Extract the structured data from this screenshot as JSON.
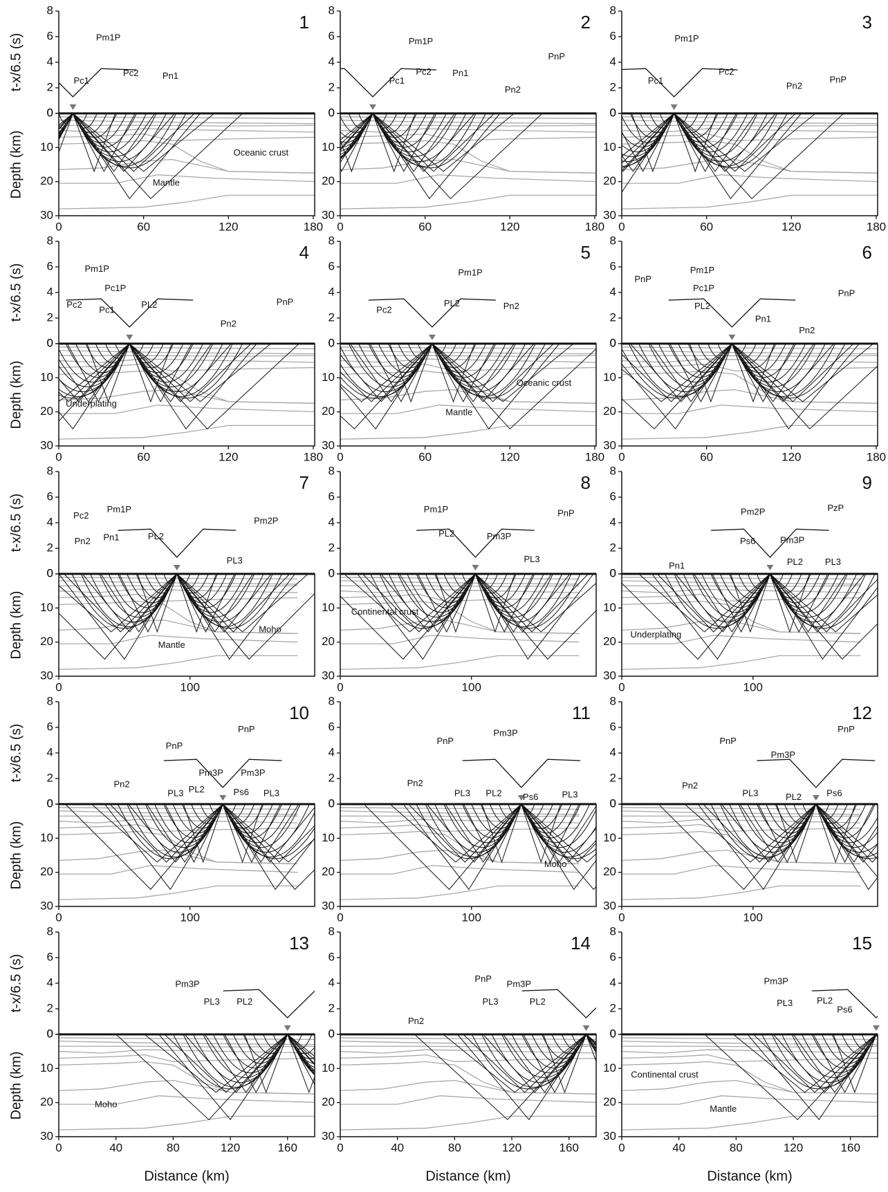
{
  "model": {
    "interfaces": [
      [
        [
          0,
          1
        ],
        [
          60,
          1.2
        ],
        [
          182,
          1.5
        ]
      ],
      [
        [
          0,
          2
        ],
        [
          60,
          2.5
        ],
        [
          120,
          2.8
        ],
        [
          182,
          3
        ]
      ],
      [
        [
          0,
          3.5
        ],
        [
          60,
          3.5
        ],
        [
          120,
          3.7
        ],
        [
          182,
          3.5
        ]
      ],
      [
        [
          0,
          5
        ],
        [
          30,
          5.5
        ],
        [
          60,
          4.5
        ],
        [
          120,
          5
        ],
        [
          182,
          5.5
        ]
      ],
      [
        [
          0,
          7
        ],
        [
          40,
          6.5
        ],
        [
          60,
          6
        ],
        [
          80,
          8
        ],
        [
          120,
          7.5
        ],
        [
          182,
          7
        ]
      ],
      [
        [
          0,
          9
        ],
        [
          40,
          8.5
        ],
        [
          60,
          8
        ],
        [
          80,
          9
        ],
        [
          100,
          14
        ],
        [
          120,
          17
        ],
        [
          182,
          17.5
        ]
      ],
      [
        [
          0,
          16.5
        ],
        [
          30,
          16
        ],
        [
          60,
          14
        ],
        [
          80,
          13.5
        ],
        [
          120,
          17
        ],
        [
          182,
          17.5
        ]
      ],
      [
        [
          0,
          20.5
        ],
        [
          40,
          20.5
        ],
        [
          70,
          18
        ],
        [
          110,
          19
        ],
        [
          182,
          20
        ]
      ],
      [
        [
          0,
          28
        ],
        [
          60,
          27.5
        ],
        [
          90,
          26
        ],
        [
          120,
          24
        ],
        [
          182,
          24
        ]
      ]
    ]
  },
  "chart_data": [
    {
      "type": "raytrace",
      "label": "1",
      "time_label": "t-x/6.5 (s)",
      "depth_label": "Depth (km)",
      "xlim": [
        0,
        181
      ],
      "xticks": [
        0,
        60,
        120,
        180
      ],
      "tlim": [
        0,
        8
      ],
      "tticks": [
        0,
        2,
        4,
        6,
        8
      ],
      "zlim": [
        0,
        30
      ],
      "zticks": [
        0,
        10,
        20,
        30
      ],
      "shot_x": 10,
      "phases": [
        {
          "text": "Pm1P",
          "x": 35,
          "t": 5.9
        },
        {
          "text": "Pc1",
          "x": 16,
          "t": 2.5
        },
        {
          "text": "Pc2",
          "x": 51,
          "t": 3.1
        },
        {
          "text": "Pn1",
          "x": 79,
          "t": 2.9
        }
      ],
      "units": [
        {
          "text": "Oceanic crust",
          "x": 143,
          "z": 11.7
        },
        {
          "text": "Mantle",
          "x": 76,
          "z": 20.5
        }
      ]
    },
    {
      "type": "raytrace",
      "label": "2",
      "xlim": [
        0,
        181
      ],
      "xticks": [
        0,
        60,
        120,
        180
      ],
      "tlim": [
        0,
        8
      ],
      "tticks": [
        0,
        2,
        4,
        6,
        8
      ],
      "zlim": [
        0,
        30
      ],
      "zticks": [
        0,
        10,
        20,
        30
      ],
      "shot_x": 23,
      "phases": [
        {
          "text": "Pm1P",
          "x": 57,
          "t": 5.6
        },
        {
          "text": "Pc1",
          "x": 40,
          "t": 2.5
        },
        {
          "text": "Pc2",
          "x": 59,
          "t": 3.2
        },
        {
          "text": "Pn1",
          "x": 85,
          "t": 3.1
        },
        {
          "text": "Pn2",
          "x": 122,
          "t": 1.8
        },
        {
          "text": "PnP",
          "x": 153,
          "t": 4.4
        }
      ],
      "units": []
    },
    {
      "type": "raytrace",
      "label": "3",
      "xlim": [
        0,
        181
      ],
      "xticks": [
        0,
        60,
        120,
        180
      ],
      "tlim": [
        0,
        8
      ],
      "tticks": [
        0,
        2,
        4,
        6,
        8
      ],
      "zlim": [
        0,
        30
      ],
      "zticks": [
        0,
        10,
        20,
        30
      ],
      "shot_x": 37,
      "phases": [
        {
          "text": "Pm1P",
          "x": 46,
          "t": 5.8
        },
        {
          "text": "Pc1",
          "x": 24,
          "t": 2.5
        },
        {
          "text": "Pc2",
          "x": 74,
          "t": 3.2
        },
        {
          "text": "Pn2",
          "x": 122,
          "t": 2.1
        },
        {
          "text": "PnP",
          "x": 153,
          "t": 2.6
        }
      ],
      "units": []
    },
    {
      "type": "raytrace",
      "label": "4",
      "time_label": "t-x/6.5 (s)",
      "depth_label": "Depth (km)",
      "xlim": [
        0,
        181
      ],
      "xticks": [
        0,
        60,
        120,
        180
      ],
      "tlim": [
        0,
        8
      ],
      "tticks": [
        0,
        2,
        4,
        6,
        8
      ],
      "zlim": [
        0,
        30
      ],
      "zticks": [
        0,
        10,
        20,
        30
      ],
      "shot_x": 50,
      "phases": [
        {
          "text": "Pm1P",
          "x": 27,
          "t": 5.8
        },
        {
          "text": "Pc2",
          "x": 11,
          "t": 3.0
        },
        {
          "text": "Pc1P",
          "x": 40,
          "t": 4.3
        },
        {
          "text": "Pc1",
          "x": 34,
          "t": 2.6
        },
        {
          "text": "PL2",
          "x": 64,
          "t": 3.0
        },
        {
          "text": "Pn2",
          "x": 120,
          "t": 1.5
        },
        {
          "text": "PnP",
          "x": 160,
          "t": 3.2
        }
      ],
      "units": [
        {
          "text": "Underplating",
          "x": 23,
          "z": 17.7
        }
      ]
    },
    {
      "type": "raytrace",
      "label": "5",
      "xlim": [
        0,
        181
      ],
      "xticks": [
        0,
        60,
        120,
        180
      ],
      "tlim": [
        0,
        8
      ],
      "tticks": [
        0,
        2,
        4,
        6,
        8
      ],
      "zlim": [
        0,
        30
      ],
      "zticks": [
        0,
        10,
        20,
        30
      ],
      "shot_x": 65,
      "phases": [
        {
          "text": "Pm1P",
          "x": 92,
          "t": 5.5
        },
        {
          "text": "Pc2",
          "x": 31,
          "t": 2.6
        },
        {
          "text": "PL2",
          "x": 79,
          "t": 3.1
        },
        {
          "text": "Pn2",
          "x": 121,
          "t": 2.9
        }
      ],
      "units": [
        {
          "text": "Oceanic crust",
          "x": 144,
          "z": 11.7
        },
        {
          "text": "Mantle",
          "x": 84,
          "z": 20.3
        }
      ]
    },
    {
      "type": "raytrace",
      "label": "6",
      "xlim": [
        0,
        181
      ],
      "xticks": [
        0,
        60,
        120,
        180
      ],
      "tlim": [
        0,
        8
      ],
      "tticks": [
        0,
        2,
        4,
        6,
        8
      ],
      "zlim": [
        0,
        30
      ],
      "zticks": [
        0,
        10,
        20,
        30
      ],
      "shot_x": 78,
      "phases": [
        {
          "text": "PnP",
          "x": 15,
          "t": 5.0
        },
        {
          "text": "PnP",
          "x": 159,
          "t": 3.9
        },
        {
          "text": "Pm1P",
          "x": 57,
          "t": 5.7
        },
        {
          "text": "Pc1P",
          "x": 58,
          "t": 4.3
        },
        {
          "text": "PL2",
          "x": 57,
          "t": 2.9
        },
        {
          "text": "Pn1",
          "x": 100,
          "t": 1.9
        },
        {
          "text": "Pn2",
          "x": 131,
          "t": 1.0
        }
      ],
      "units": []
    },
    {
      "type": "raytrace",
      "label": "7",
      "time_label": "t-x/6.5 (s)",
      "depth_label": "Depth (km)",
      "xlim": [
        0,
        195
      ],
      "xticks": [
        0,
        100
      ],
      "tlim": [
        0,
        8
      ],
      "tticks": [
        0,
        2,
        4,
        6,
        8
      ],
      "zlim": [
        0,
        30
      ],
      "zticks": [
        0,
        10,
        20,
        30
      ],
      "shot_x": 90,
      "phases": [
        {
          "text": "Pc2",
          "x": 17,
          "t": 4.5
        },
        {
          "text": "Pn2",
          "x": 18,
          "t": 2.5
        },
        {
          "text": "Pn1",
          "x": 40,
          "t": 2.8
        },
        {
          "text": "Pm1P",
          "x": 46,
          "t": 5.0
        },
        {
          "text": "PL2",
          "x": 74,
          "t": 2.9
        },
        {
          "text": "PL3",
          "x": 134,
          "t": 1.0
        },
        {
          "text": "Pm2P",
          "x": 158,
          "t": 4.1
        }
      ],
      "units": [
        {
          "text": "Mantle",
          "x": 86,
          "z": 21
        },
        {
          "text": "Moho",
          "x": 161,
          "z": 16.4
        }
      ]
    },
    {
      "type": "raytrace",
      "label": "8",
      "xlim": [
        0,
        195
      ],
      "xticks": [
        0,
        100
      ],
      "tlim": [
        0,
        8
      ],
      "tticks": [
        0,
        2,
        4,
        6,
        8
      ],
      "zlim": [
        0,
        30
      ],
      "zticks": [
        0,
        10,
        20,
        30
      ],
      "shot_x": 103,
      "phases": [
        {
          "text": "Pm1P",
          "x": 73,
          "t": 5.0
        },
        {
          "text": "PL2",
          "x": 81,
          "t": 3.1
        },
        {
          "text": "Pm3P",
          "x": 121,
          "t": 2.9
        },
        {
          "text": "PnP",
          "x": 172,
          "t": 4.7
        },
        {
          "text": "PL3",
          "x": 146,
          "t": 1.1
        }
      ],
      "units": [
        {
          "text": "Continental crust",
          "x": 34,
          "z": 11.3
        }
      ]
    },
    {
      "type": "raytrace",
      "label": "9",
      "xlim": [
        0,
        195
      ],
      "xticks": [
        0,
        100
      ],
      "tlim": [
        0,
        8
      ],
      "tticks": [
        0,
        2,
        4,
        6,
        8
      ],
      "zlim": [
        0,
        30
      ],
      "zticks": [
        0,
        10,
        20,
        30
      ],
      "shot_x": 113,
      "phases": [
        {
          "text": "Pm2P",
          "x": 100,
          "t": 4.8
        },
        {
          "text": "Ps6",
          "x": 96,
          "t": 2.5
        },
        {
          "text": "Pm3P",
          "x": 130,
          "t": 2.6
        },
        {
          "text": "PzP",
          "x": 163,
          "t": 5.1
        },
        {
          "text": "PL2",
          "x": 132,
          "t": 0.9
        },
        {
          "text": "PL3",
          "x": 161,
          "t": 0.9
        },
        {
          "text": "Pn1",
          "x": 42,
          "t": 0.6
        }
      ],
      "units": [
        {
          "text": "Underplating",
          "x": 26,
          "z": 18
        }
      ]
    },
    {
      "type": "raytrace",
      "label": "10",
      "time_label": "t-x/6.5 (s)",
      "depth_label": "Depth (km)",
      "xlim": [
        0,
        195
      ],
      "xticks": [
        0,
        100
      ],
      "tlim": [
        0,
        8
      ],
      "tticks": [
        0,
        2,
        4,
        6,
        8
      ],
      "zlim": [
        0,
        30
      ],
      "zticks": [
        0,
        10,
        20,
        30
      ],
      "shot_x": 125,
      "phases": [
        {
          "text": "PnP",
          "x": 88,
          "t": 4.5
        },
        {
          "text": "Pm3P",
          "x": 116,
          "t": 2.4
        },
        {
          "text": "PL3",
          "x": 89,
          "t": 0.8
        },
        {
          "text": "PL2",
          "x": 105,
          "t": 1.1
        },
        {
          "text": "Pn2",
          "x": 48,
          "t": 1.5
        },
        {
          "text": "Ps6",
          "x": 139,
          "t": 0.9
        },
        {
          "text": "Pm3P",
          "x": 148,
          "t": 2.4
        },
        {
          "text": "PnP",
          "x": 143,
          "t": 5.8
        },
        {
          "text": "PL3",
          "x": 162,
          "t": 0.8
        }
      ],
      "units": []
    },
    {
      "type": "raytrace",
      "label": "11",
      "xlim": [
        0,
        195
      ],
      "xticks": [
        0,
        100
      ],
      "tlim": [
        0,
        8
      ],
      "tticks": [
        0,
        2,
        4,
        6,
        8
      ],
      "zlim": [
        0,
        30
      ],
      "zticks": [
        0,
        10,
        20,
        30
      ],
      "shot_x": 138,
      "phases": [
        {
          "text": "PnP",
          "x": 80,
          "t": 4.9
        },
        {
          "text": "Pm3P",
          "x": 126,
          "t": 5.5
        },
        {
          "text": "PL3",
          "x": 93,
          "t": 0.8
        },
        {
          "text": "PL2",
          "x": 117,
          "t": 0.8
        },
        {
          "text": "Ps6",
          "x": 145,
          "t": 0.5
        },
        {
          "text": "PL3",
          "x": 175,
          "t": 0.7
        },
        {
          "text": "Pn2",
          "x": 57,
          "t": 1.6
        }
      ],
      "units": [
        {
          "text": "Moho",
          "x": 164,
          "z": 17.7
        }
      ]
    },
    {
      "type": "raytrace",
      "label": "12",
      "xlim": [
        0,
        195
      ],
      "xticks": [
        0,
        100
      ],
      "tlim": [
        0,
        8
      ],
      "tticks": [
        0,
        2,
        4,
        6,
        8
      ],
      "zlim": [
        0,
        30
      ],
      "zticks": [
        0,
        10,
        20,
        30
      ],
      "shot_x": 148,
      "phases": [
        {
          "text": "PnP",
          "x": 81,
          "t": 4.9
        },
        {
          "text": "Pm3P",
          "x": 123,
          "t": 3.8
        },
        {
          "text": "PL3",
          "x": 98,
          "t": 0.8
        },
        {
          "text": "PL2",
          "x": 131,
          "t": 0.5
        },
        {
          "text": "Ps6",
          "x": 162,
          "t": 0.8
        },
        {
          "text": "Pn2",
          "x": 52,
          "t": 1.4
        },
        {
          "text": "PnP",
          "x": 171,
          "t": 5.8
        }
      ],
      "units": []
    },
    {
      "type": "raytrace",
      "label": "13",
      "time_label": "t-x/6.5 (s)",
      "depth_label": "Depth (km)",
      "xlabel": "Distance (km)",
      "xlim": [
        0,
        179
      ],
      "xticks": [
        0,
        40,
        80,
        120,
        160
      ],
      "tlim": [
        0,
        8
      ],
      "tticks": [
        0,
        2,
        4,
        6,
        8
      ],
      "zlim": [
        0,
        30
      ],
      "zticks": [
        0,
        10,
        20,
        30
      ],
      "shot_x": 160,
      "phases": [
        {
          "text": "Pm3P",
          "x": 90,
          "t": 3.9
        },
        {
          "text": "PL3",
          "x": 107,
          "t": 2.5
        },
        {
          "text": "PL2",
          "x": 130,
          "t": 2.5
        }
      ],
      "units": [
        {
          "text": "Moho",
          "x": 33,
          "z": 20.7
        }
      ]
    },
    {
      "type": "raytrace",
      "label": "14",
      "xlabel": "Distance (km)",
      "xlim": [
        0,
        179
      ],
      "xticks": [
        0,
        40,
        80,
        120,
        160
      ],
      "tlim": [
        0,
        8
      ],
      "tticks": [
        0,
        2,
        4,
        6,
        8
      ],
      "zlim": [
        0,
        30
      ],
      "zticks": [
        0,
        10,
        20,
        30
      ],
      "shot_x": 172,
      "phases": [
        {
          "text": "Pn2",
          "x": 53,
          "t": 1.0
        },
        {
          "text": "PnP",
          "x": 100,
          "t": 4.3
        },
        {
          "text": "Pm3P",
          "x": 125,
          "t": 3.9
        },
        {
          "text": "PL3",
          "x": 105,
          "t": 2.5
        },
        {
          "text": "PL2",
          "x": 138,
          "t": 2.5
        }
      ],
      "units": []
    },
    {
      "type": "raytrace",
      "label": "15",
      "xlabel": "Distance (km)",
      "xlim": [
        0,
        179
      ],
      "xticks": [
        0,
        40,
        80,
        120,
        160
      ],
      "tlim": [
        0,
        8
      ],
      "tticks": [
        0,
        2,
        4,
        6,
        8
      ],
      "zlim": [
        0,
        30
      ],
      "zticks": [
        0,
        10,
        20,
        30
      ],
      "shot_x": 178,
      "phases": [
        {
          "text": "Pm3P",
          "x": 108,
          "t": 4.1
        },
        {
          "text": "PL3",
          "x": 114,
          "t": 2.4
        },
        {
          "text": "PL2",
          "x": 142,
          "t": 2.6
        },
        {
          "text": "Ps6",
          "x": 156,
          "t": 1.9
        }
      ],
      "units": [
        {
          "text": "Continental crust",
          "x": 30,
          "z": 12
        },
        {
          "text": "Mantle",
          "x": 71,
          "z": 22
        }
      ]
    }
  ]
}
